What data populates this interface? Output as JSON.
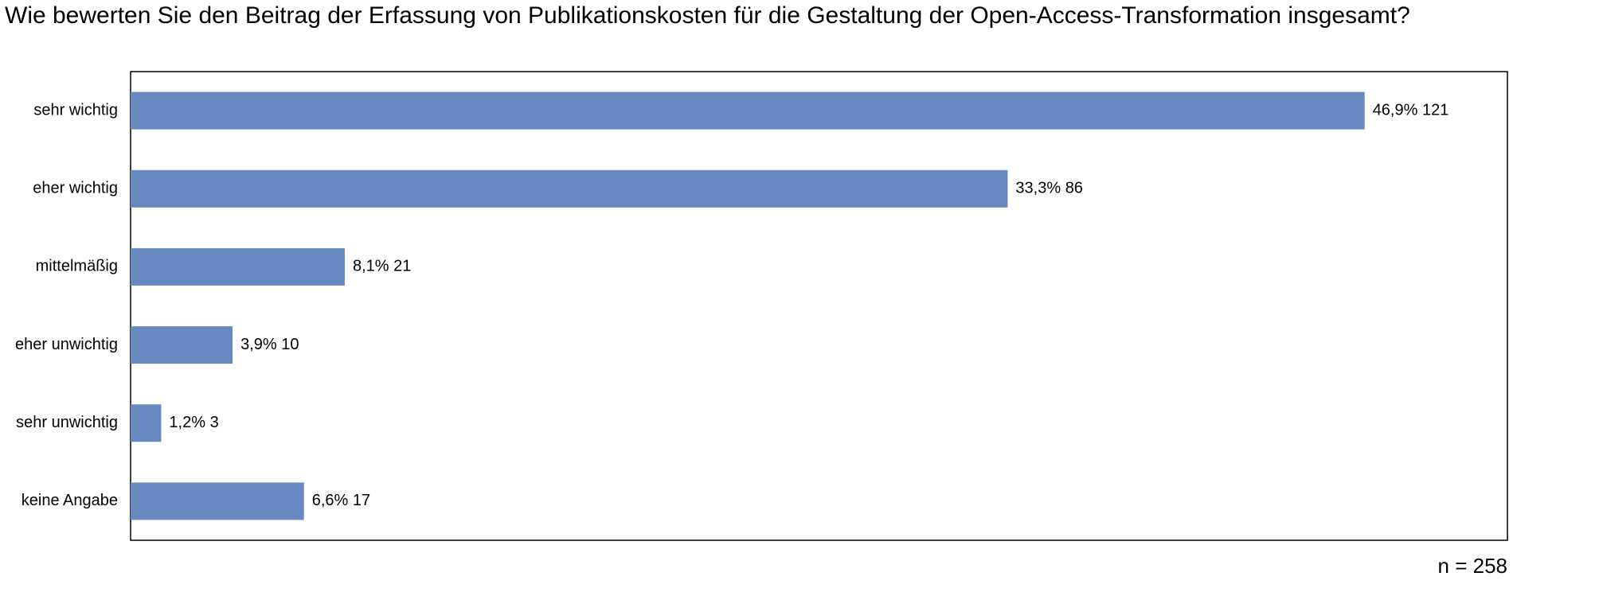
{
  "chart_data": {
    "type": "barh",
    "title": "Wie bewerten Sie den Beitrag der Erfassung von Publikationskosten für die Gestaltung der Open-Access-Transformation insgesamt?",
    "categories": [
      "sehr wichtig",
      "eher wichtig",
      "mittelmäßig",
      "eher unwichtig",
      "sehr unwichtig",
      "keine Angabe"
    ],
    "values": [
      121,
      86,
      21,
      10,
      3,
      17
    ],
    "value_labels": [
      "46,9% 121",
      "33,3% 86",
      "8,1% 21",
      "3,9% 10",
      "1,2% 3",
      "6,6% 17"
    ],
    "color": "#6889bf",
    "xlim": [
      0,
      135
    ],
    "annotation": "n = 258"
  }
}
